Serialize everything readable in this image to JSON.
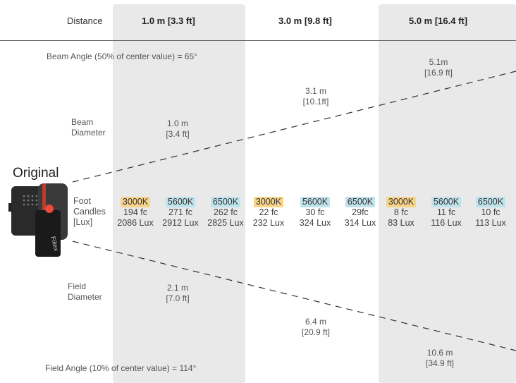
{
  "header": {
    "distance_label": "Distance",
    "d1": "1.0 m [3.3 ft]",
    "d2": "3.0 m [9.8 ft]",
    "d3": "5.0 m [16.4 ft]"
  },
  "beam": {
    "angle_label": "Beam Angle (50% of center value) = 65°",
    "label_line1": "Beam",
    "label_line2": "Diameter",
    "d1_m": "1.0 m",
    "d1_ft": "[3.4 ft]",
    "d2_m": "3.1 m",
    "d2_ft": "[10.1ft]",
    "d3_m": "5.1m",
    "d3_ft": "[16.9 ft]"
  },
  "field": {
    "angle_label": "Field Angle (10% of center value) = 114°",
    "label_line1": "Field",
    "label_line2": "Diameter",
    "d1_m": "2.1 m",
    "d1_ft": "[7.0 ft]",
    "d2_m": "6.4 m",
    "d2_ft": "[20.9 ft]",
    "d3_m": "10.6 m",
    "d3_ft": "[34.9 ft]"
  },
  "product": {
    "name": "Original",
    "brand": "Fiilex"
  },
  "foot_candles": {
    "label_line1": "Foot",
    "label_line2": "Candles",
    "label_line3": "[Lux]",
    "colors": {
      "3000K": "#f7d48a",
      "5600K": "#bfe3ec",
      "6500K": "#bfe3ec"
    },
    "cells": [
      {
        "temp": "3000K",
        "fc": "194 fc",
        "lux": "2086 Lux"
      },
      {
        "temp": "5600K",
        "fc": "271 fc",
        "lux": "2912 Lux"
      },
      {
        "temp": "6500K",
        "fc": "262 fc",
        "lux": "2825 Lux"
      },
      {
        "temp": "3000K",
        "fc": "22 fc",
        "lux": "232 Lux"
      },
      {
        "temp": "5600K",
        "fc": "30 fc",
        "lux": "324 Lux"
      },
      {
        "temp": "6500K",
        "fc": "29fc",
        "lux": "314 Lux"
      },
      {
        "temp": "3000K",
        "fc": "8 fc",
        "lux": "83 Lux"
      },
      {
        "temp": "5600K",
        "fc": "11 fc",
        "lux": "116 Lux"
      },
      {
        "temp": "6500K",
        "fc": "10 fc",
        "lux": "113 Lux"
      }
    ]
  }
}
